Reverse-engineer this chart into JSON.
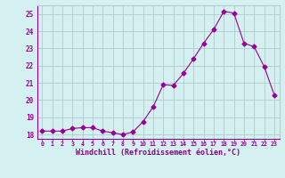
{
  "x": [
    0,
    1,
    2,
    3,
    4,
    5,
    6,
    7,
    8,
    9,
    10,
    11,
    12,
    13,
    14,
    15,
    16,
    17,
    18,
    19,
    20,
    21,
    22,
    23
  ],
  "y": [
    18.2,
    18.2,
    18.2,
    18.35,
    18.4,
    18.4,
    18.2,
    18.1,
    18.0,
    18.15,
    18.75,
    19.6,
    20.9,
    20.85,
    21.55,
    22.4,
    23.3,
    24.1,
    25.15,
    25.05,
    23.3,
    23.1,
    21.95,
    20.3
  ],
  "line_color": "#990099",
  "marker": "D",
  "marker_size": 2.5,
  "bg_color": "#d4f0f0",
  "grid_color": "#b0cccc",
  "xlabel": "Windchill (Refroidissement éolien,°C)",
  "xlabel_color": "#880088",
  "tick_color": "#990099",
  "ylim": [
    17.75,
    25.5
  ],
  "xlim": [
    -0.5,
    23.5
  ],
  "yticks": [
    18,
    19,
    20,
    21,
    22,
    23,
    24,
    25
  ],
  "xticks": [
    0,
    1,
    2,
    3,
    4,
    5,
    6,
    7,
    8,
    9,
    10,
    11,
    12,
    13,
    14,
    15,
    16,
    17,
    18,
    19,
    20,
    21,
    22,
    23
  ]
}
